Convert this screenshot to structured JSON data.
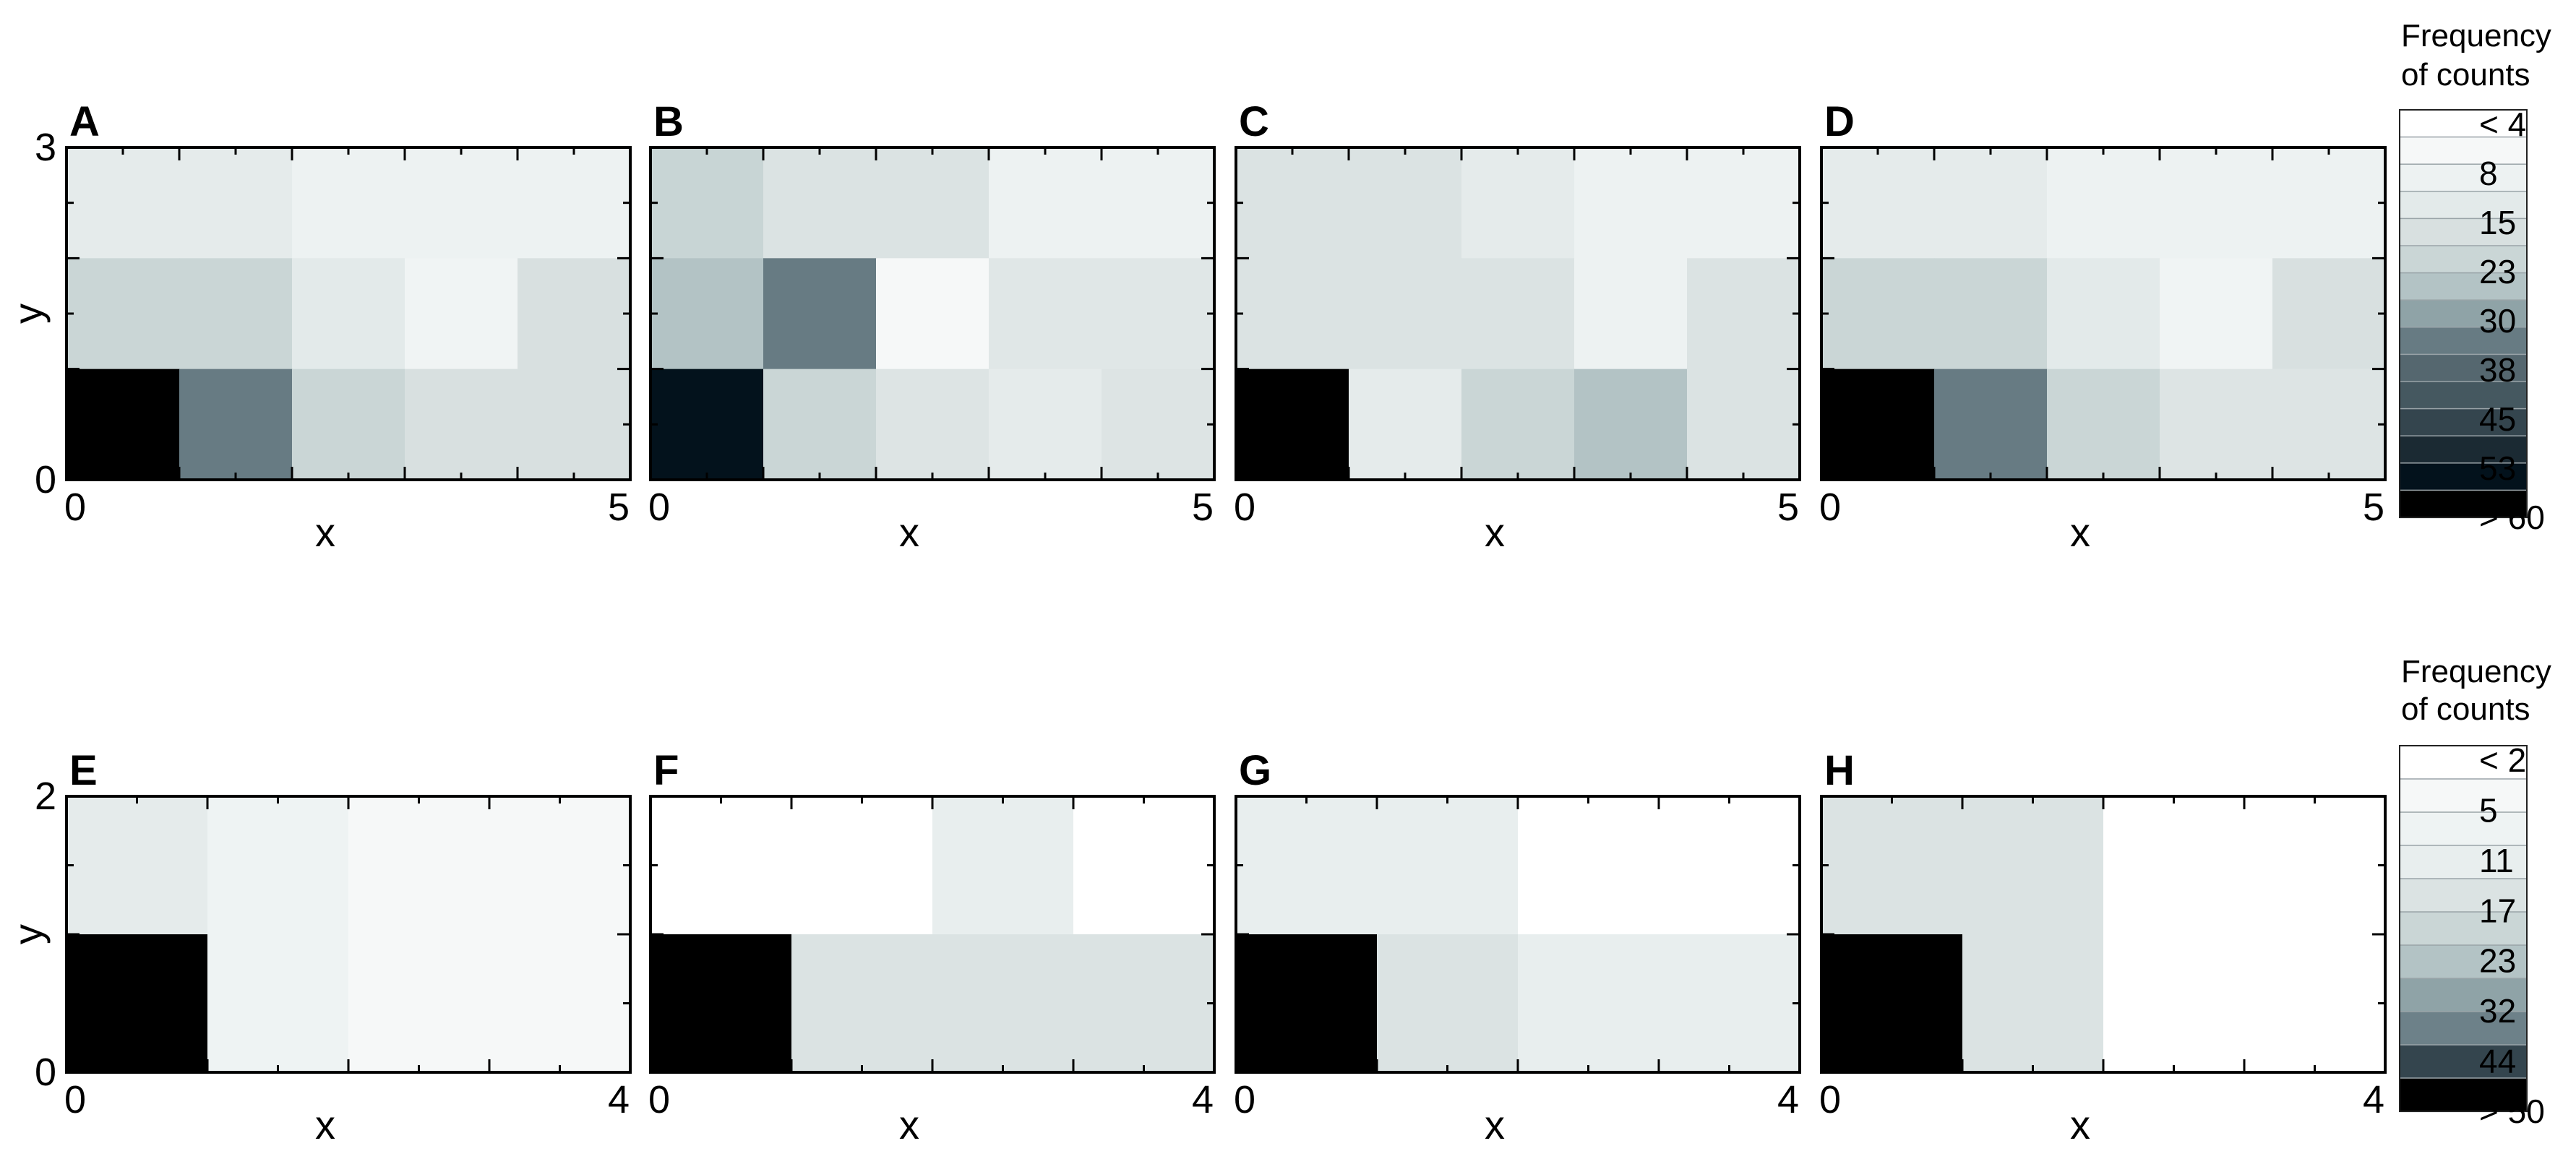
{
  "chart_data": [
    {
      "type": "heatmap",
      "panel": "A",
      "xlabel": "x",
      "ylabel": "y",
      "xlim": [
        0,
        5
      ],
      "ylim": [
        0,
        3
      ],
      "x_tick_labels": [
        "0",
        "5"
      ],
      "y_tick_labels": [
        "0",
        "3"
      ],
      "colors": [
        "#e5ebeb",
        "#e5ebeb",
        "#edf2f2",
        "#edf2f2",
        "#edf2f2",
        "#cad6d6",
        "#cad6d6",
        "#e3eaea",
        "#f0f4f4",
        "#d8e0e0",
        "#000000",
        "#677b83",
        "#cad6d6",
        "#d8e0e0",
        "#d8e0e0"
      ]
    },
    {
      "type": "heatmap",
      "panel": "B",
      "xlabel": "x",
      "ylabel": "y",
      "xlim": [
        0,
        5
      ],
      "ylim": [
        0,
        3
      ],
      "x_tick_labels": [
        "0",
        "5"
      ],
      "y_tick_labels": [
        "0",
        "3"
      ],
      "colors": [
        "#c8d5d5",
        "#dbe3e3",
        "#dbe3e3",
        "#edf2f2",
        "#edf2f2",
        "#b3c3c5",
        "#677b83",
        "#f6f8f8",
        "#e0e7e7",
        "#e0e7e7",
        "#03121c",
        "#cad6d6",
        "#dde4e4",
        "#e5ebeb",
        "#dde4e4"
      ]
    },
    {
      "type": "heatmap",
      "panel": "C",
      "xlabel": "x",
      "ylabel": "y",
      "xlim": [
        0,
        5
      ],
      "ylim": [
        0,
        3
      ],
      "x_tick_labels": [
        "0",
        "5"
      ],
      "y_tick_labels": [
        "0",
        "3"
      ],
      "colors": [
        "#dbe3e3",
        "#dbe3e3",
        "#e5ebeb",
        "#edf2f2",
        "#edf2f2",
        "#dbe3e3",
        "#dbe3e3",
        "#dbe3e3",
        "#edf2f2",
        "#dbe3e3",
        "#000000",
        "#e5ebeb",
        "#cad6d6",
        "#b3c3c5",
        "#dbe3e3"
      ]
    },
    {
      "type": "heatmap",
      "panel": "D",
      "xlabel": "x",
      "ylabel": "y",
      "xlim": [
        0,
        5
      ],
      "ylim": [
        0,
        3
      ],
      "x_tick_labels": [
        "0",
        "5"
      ],
      "y_tick_labels": [
        "0",
        "3"
      ],
      "colors": [
        "#e5ebeb",
        "#e5ebeb",
        "#edf2f2",
        "#edf2f2",
        "#edf2f2",
        "#cad6d6",
        "#cad6d6",
        "#e3eaea",
        "#f0f4f4",
        "#d8e0e0",
        "#000000",
        "#677b83",
        "#cad6d6",
        "#dde4e4",
        "#dde4e4"
      ]
    },
    {
      "type": "heatmap",
      "panel": "E",
      "xlabel": "x",
      "ylabel": "y",
      "xlim": [
        0,
        4
      ],
      "ylim": [
        0,
        2
      ],
      "x_tick_labels": [
        "0",
        "4"
      ],
      "y_tick_labels": [
        "0",
        "2"
      ],
      "colors": [
        "#e5ebeb",
        "#eef3f3",
        "#f6f8f8",
        "#f6f8f8",
        "#000000",
        "#eef3f3",
        "#f6f8f8",
        "#f6f8f8"
      ]
    },
    {
      "type": "heatmap",
      "panel": "F",
      "xlabel": "x",
      "ylabel": "y",
      "xlim": [
        0,
        4
      ],
      "ylim": [
        0,
        2
      ],
      "x_tick_labels": [
        "0",
        "4"
      ],
      "y_tick_labels": [
        "0",
        "2"
      ],
      "colors": [
        "#ffffff",
        "#ffffff",
        "#e8eeee",
        "#ffffff",
        "#000000",
        "#dbe3e3",
        "#dbe3e3",
        "#dbe3e3"
      ]
    },
    {
      "type": "heatmap",
      "panel": "G",
      "xlabel": "x",
      "ylabel": "y",
      "xlim": [
        0,
        4
      ],
      "ylim": [
        0,
        2
      ],
      "x_tick_labels": [
        "0",
        "4"
      ],
      "y_tick_labels": [
        "0",
        "2"
      ],
      "colors": [
        "#e8eeee",
        "#e8eeee",
        "#ffffff",
        "#ffffff",
        "#000000",
        "#dbe3e3",
        "#e8eeee",
        "#e8eeee"
      ]
    },
    {
      "type": "heatmap",
      "panel": "H",
      "xlabel": "x",
      "ylabel": "y",
      "xlim": [
        0,
        4
      ],
      "ylim": [
        0,
        2
      ],
      "x_tick_labels": [
        "0",
        "4"
      ],
      "y_tick_labels": [
        "0",
        "2"
      ],
      "colors": [
        "#dbe3e3",
        "#dbe3e3",
        "#ffffff",
        "#ffffff",
        "#000000",
        "#dbe3e3",
        "#ffffff",
        "#ffffff"
      ]
    }
  ],
  "legends": [
    {
      "title_line1": "Frequency",
      "title_line2": "of counts",
      "levels": [
        "< 4",
        "8",
        "15",
        "23",
        "30",
        "38",
        "45",
        "53",
        "> 60"
      ],
      "colors": [
        "#ffffff",
        "#f6f8f8",
        "#edf2f2",
        "#e3eaea",
        "#d8e0e0",
        "#cad6d6",
        "#b3c3c5",
        "#8fa3a7",
        "#677b83",
        "#55676f",
        "#455860",
        "#34454e",
        "#1b2a33",
        "#03121c",
        "#000000"
      ]
    },
    {
      "title_line1": "Frequency",
      "title_line2": "of counts",
      "levels": [
        "< 2",
        "5",
        "11",
        "17",
        "23",
        "32",
        "44",
        "> 50"
      ],
      "colors": [
        "#ffffff",
        "#f6f8f8",
        "#eef3f3",
        "#e8eeee",
        "#dbe3e3",
        "#cad6d6",
        "#b3c3c5",
        "#8fa3a7",
        "#6d8189",
        "#34454e",
        "#000000"
      ]
    }
  ]
}
